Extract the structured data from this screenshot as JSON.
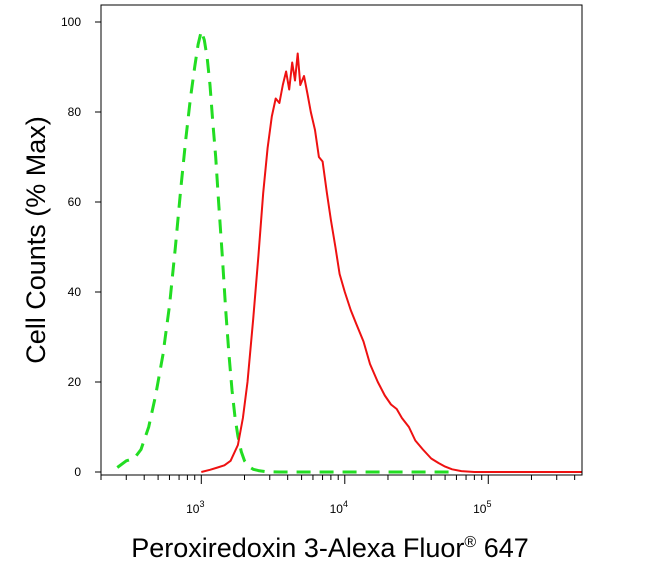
{
  "chart_data": {
    "type": "line",
    "xlabel": "Peroxiredoxin 3-Alexa Fluor",
    "xlabel_superscript": "®",
    "xlabel_suffix": " 647",
    "ylabel": "Cell Counts (% Max)",
    "x_scale": "log",
    "xlim": [
      200,
      450000
    ],
    "ylim": [
      0,
      100
    ],
    "x_ticks": [
      {
        "base": "10",
        "exp": "3",
        "value": 1000
      },
      {
        "base": "10",
        "exp": "4",
        "value": 10000
      },
      {
        "base": "10",
        "exp": "5",
        "value": 100000
      }
    ],
    "y_ticks": [
      0,
      20,
      40,
      60,
      80,
      100
    ],
    "grid": false,
    "legend": "none",
    "series": [
      {
        "color": "#22dd22",
        "dash": "dashed",
        "x": [
          260,
          300,
          340,
          380,
          430,
          480,
          540,
          600,
          660,
          720,
          780,
          840,
          900,
          950,
          1000,
          1050,
          1100,
          1150,
          1200,
          1260,
          1320,
          1400,
          1480,
          1560,
          1640,
          1720,
          1800,
          1900,
          2000,
          2150,
          2300,
          2500,
          2800,
          3500,
          6000,
          20000,
          60000
        ],
        "y": [
          1.0,
          2.5,
          3.0,
          5.0,
          10.0,
          17.0,
          26.0,
          37.0,
          50.0,
          63.0,
          74.0,
          83.0,
          90.0,
          95.0,
          98.0,
          96.0,
          92.0,
          86.0,
          78.0,
          70.0,
          60.0,
          48.0,
          36.0,
          26.0,
          18.0,
          12.0,
          8.0,
          4.5,
          2.5,
          1.2,
          0.6,
          0.3,
          0.1,
          0.0,
          0.0,
          0.0,
          0.0
        ]
      },
      {
        "color": "#ee1111",
        "dash": "solid",
        "x": [
          1000,
          1150,
          1300,
          1450,
          1600,
          1800,
          1950,
          2100,
          2300,
          2500,
          2700,
          2900,
          3100,
          3300,
          3500,
          3700,
          3900,
          4100,
          4300,
          4500,
          4700,
          4900,
          5200,
          5500,
          5800,
          6200,
          6600,
          7000,
          7500,
          8000,
          8600,
          9200,
          10000,
          11000,
          12000,
          13500,
          15000,
          17000,
          19000,
          21000,
          23000,
          25000,
          28000,
          31000,
          35000,
          40000,
          45000,
          50000,
          56000,
          65000,
          80000,
          120000,
          450000
        ],
        "y": [
          0.0,
          0.5,
          1.0,
          1.5,
          2.5,
          6.0,
          12.0,
          20.0,
          34.0,
          48.0,
          62.0,
          72.0,
          79.0,
          83.0,
          82.0,
          86.0,
          89.0,
          85.0,
          91.0,
          87.0,
          93.0,
          86.0,
          88.0,
          84.0,
          80.0,
          76.0,
          70.0,
          69.0,
          62.0,
          56.0,
          50.0,
          44.0,
          40.0,
          36.0,
          33.0,
          29.0,
          24.0,
          20.0,
          17.0,
          15.0,
          14.0,
          12.0,
          10.0,
          7.0,
          5.0,
          3.0,
          2.0,
          1.2,
          0.6,
          0.2,
          0.0,
          0.0,
          0.0
        ]
      }
    ]
  }
}
